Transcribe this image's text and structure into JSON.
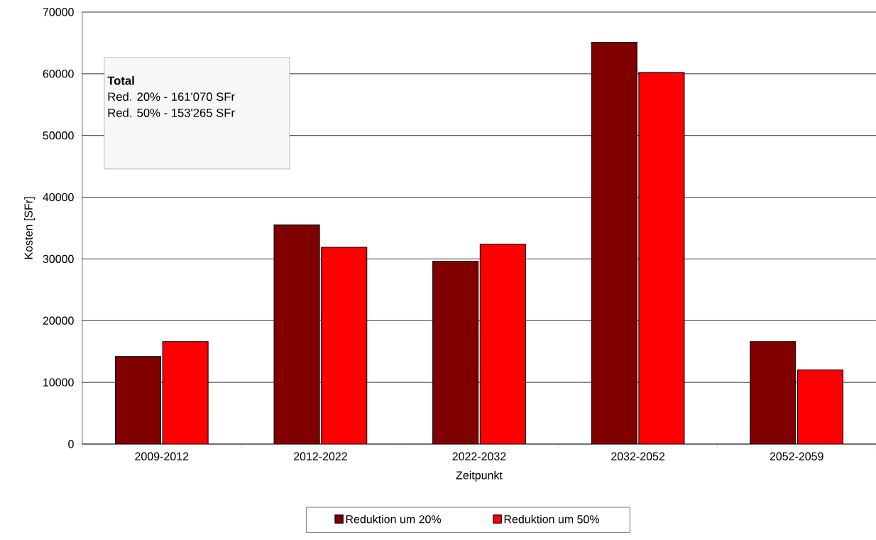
{
  "chart_data": {
    "type": "bar",
    "xlabel": "Zeitpunkt",
    "ylabel": "Kosten [SFr]",
    "categories": [
      "2009-2012",
      "2012-2022",
      "2022-2032",
      "2032-2052",
      "2052-2059"
    ],
    "series": [
      {
        "name": "Reduktion um 20%",
        "color": "#800000",
        "values": [
          14200,
          35500,
          29600,
          65100,
          16600
        ]
      },
      {
        "name": "Reduktion um 50%",
        "color": "#ff0000",
        "values": [
          16600,
          31900,
          32400,
          60200,
          12000
        ]
      }
    ],
    "ylim": [
      0,
      70000
    ],
    "yticks": [
      0,
      10000,
      20000,
      30000,
      40000,
      50000,
      60000,
      70000
    ],
    "grid": "y",
    "legend": "bottom",
    "annotations": [
      "Total",
      "Red. 20% - 161'070 SFr",
      "Red. 50% - 153'265 SFr"
    ]
  }
}
